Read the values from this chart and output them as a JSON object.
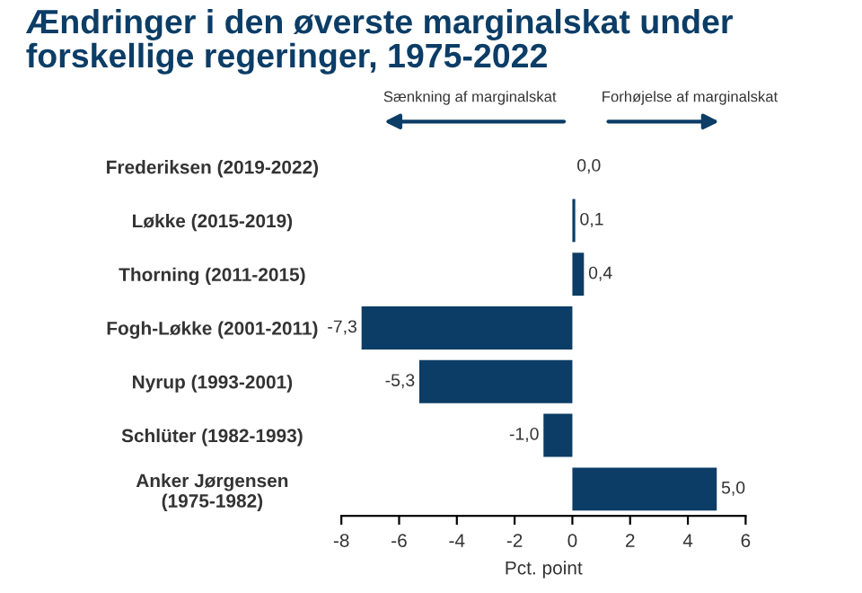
{
  "chart_data": {
    "type": "bar",
    "orientation": "horizontal",
    "title": "Ændringer i den øverste marginalskat under\nforskellige regeringer, 1975-2022",
    "xlabel": "Pct. point",
    "categories": [
      "Frederiksen (2019-2022)",
      "Løkke (2015-2019)",
      "Thorning (2011-2015)",
      "Fogh-Løkke (2001-2011)",
      "Nyrup (1993-2001)",
      "Schlüter (1982-1993)",
      "Anker Jørgensen\n(1975-1982)"
    ],
    "values": [
      0.0,
      0.1,
      0.4,
      -7.3,
      -5.3,
      -1.0,
      5.0
    ],
    "value_labels": [
      "0,0",
      "0,1",
      "0,4",
      "-7,3",
      "-5,3",
      "-1,0",
      "5,0"
    ],
    "color": "#0b3d66",
    "xlim": [
      -8,
      6
    ],
    "xticks": [
      -8,
      -6,
      -4,
      -2,
      0,
      2,
      4,
      6
    ],
    "annotations": [
      "Sænkning af marginalskat",
      "Forhøjelse af marginalskat"
    ],
    "grid": false,
    "legend": false
  }
}
